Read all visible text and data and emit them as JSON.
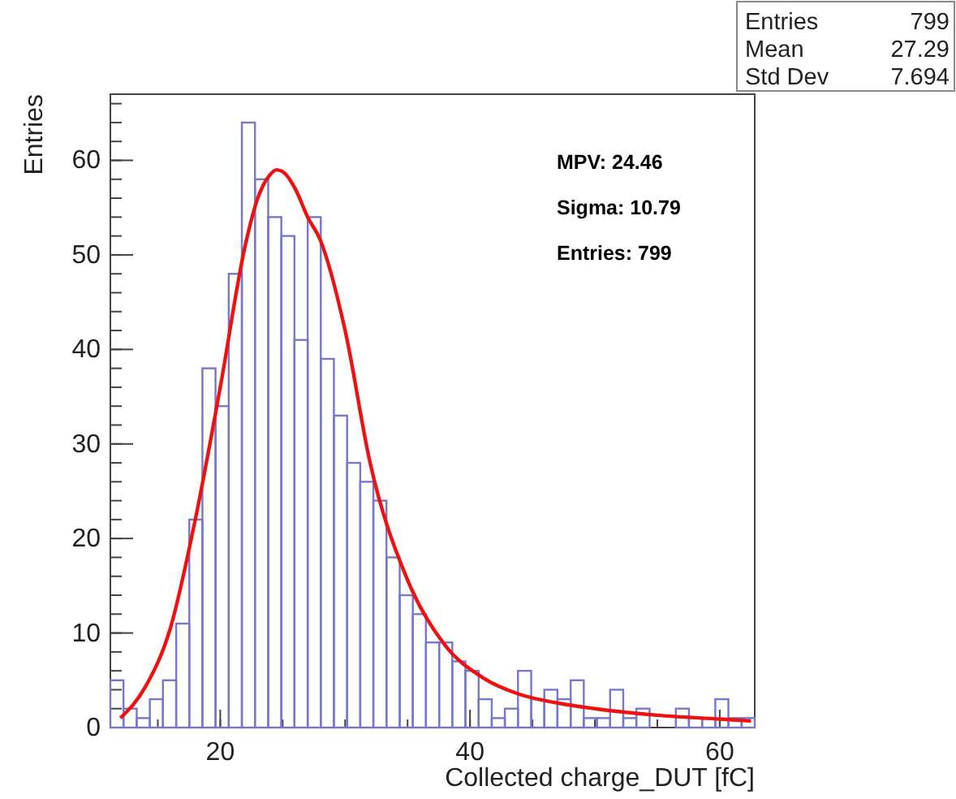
{
  "chart_data": {
    "type": "histogram",
    "xlabel": "Collected charge_DUT [fC]",
    "ylabel": "Entries",
    "bins": [
      11.2,
      12.25,
      13.31,
      14.36,
      15.41,
      16.47,
      17.52,
      18.57,
      19.62,
      20.68,
      21.73,
      22.78,
      23.84,
      24.89,
      25.94,
      27.0,
      28.05,
      29.1,
      30.16,
      31.21,
      32.26,
      33.31,
      34.37,
      35.42,
      36.47,
      37.53,
      38.58,
      39.63,
      40.69,
      41.74,
      42.79,
      43.84,
      44.9,
      45.95,
      47.0,
      48.06,
      49.11,
      50.16,
      51.22,
      52.27,
      53.32,
      54.38,
      55.43,
      56.48,
      57.53,
      58.59,
      59.64,
      60.69,
      61.75,
      62.8
    ],
    "values": [
      5,
      2,
      1,
      3,
      5,
      11,
      22,
      38,
      34,
      48,
      64,
      58,
      54,
      52,
      41,
      54,
      39,
      33,
      28,
      26,
      24,
      18,
      14,
      12,
      9,
      9,
      7,
      6,
      3,
      1,
      2,
      6,
      3,
      4,
      3,
      5,
      1,
      1,
      4,
      1,
      2,
      0,
      0,
      2,
      1,
      1,
      3,
      1,
      1
    ],
    "color": "#7777cc",
    "series": [
      {
        "type": "line",
        "color": "#ee1111",
        "x": [
          12,
          14,
          16,
          18,
          20,
          22,
          23,
          24,
          24.5,
          25,
          26,
          27,
          28,
          30,
          32,
          35,
          38,
          41,
          44,
          47,
          50,
          55,
          60,
          62.5
        ],
        "values": [
          1,
          4.3,
          10.5,
          22,
          36,
          51,
          56,
          58.5,
          59,
          58.8,
          57,
          54,
          51.6,
          42,
          28,
          15.6,
          8.7,
          5.3,
          3.5,
          2.6,
          2,
          1.3,
          0.9,
          0.7
        ]
      }
    ],
    "xlim": [
      11.2,
      62.8
    ],
    "ylim": [
      0,
      67
    ],
    "xticks": [
      20,
      40,
      60
    ],
    "yticks": [
      0,
      10,
      20,
      30,
      40,
      50,
      60
    ],
    "annotations": [
      "Entries",
      "799",
      "Mean",
      "27.29",
      "Std Dev",
      "7.694",
      "MPV: 24.46",
      "Sigma: 10.79",
      "Entries: 799"
    ]
  }
}
